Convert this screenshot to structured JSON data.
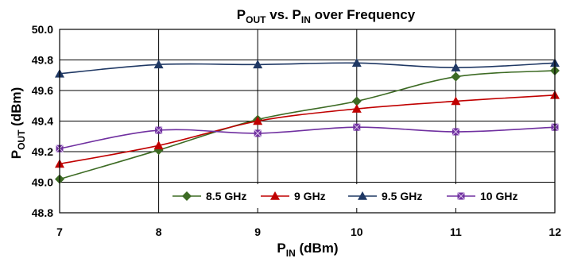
{
  "chart_data": {
    "type": "line",
    "title": {
      "main": "P",
      "main_sub": "OUT",
      "mid": " vs. P",
      "mid_sub": "IN",
      "tail": " over Frequency"
    },
    "xlabel": {
      "main": "P",
      "sub": "IN",
      "tail": " (dBm)"
    },
    "ylabel": {
      "main": "P",
      "sub": "OUT",
      "tail": " (dBm)"
    },
    "x_ticks": [
      "7",
      "8",
      "9",
      "10",
      "11",
      "12"
    ],
    "y_ticks": [
      "48.8",
      "49.0",
      "49.2",
      "49.4",
      "49.6",
      "49.8",
      "50.0"
    ],
    "xlim": [
      7,
      12
    ],
    "ylim": [
      48.8,
      50.0
    ],
    "grid": true,
    "legend_position": "bottom-center inside plot",
    "x": [
      7,
      8,
      9,
      10,
      11,
      12
    ],
    "series": [
      {
        "name": "8.5 GHz",
        "color": "#3d6b24",
        "marker": "diamond",
        "values": [
          49.02,
          49.21,
          49.41,
          49.53,
          49.69,
          49.73
        ]
      },
      {
        "name": "9 GHz",
        "color": "#c00000",
        "marker": "triangle",
        "values": [
          49.12,
          49.24,
          49.4,
          49.48,
          49.53,
          49.57
        ]
      },
      {
        "name": "9.5 GHz",
        "color": "#1f3864",
        "marker": "triangle",
        "values": [
          49.71,
          49.77,
          49.77,
          49.78,
          49.75,
          49.78
        ]
      },
      {
        "name": "10 GHz",
        "color": "#7030a0",
        "marker": "square-x",
        "values": [
          49.22,
          49.34,
          49.32,
          49.36,
          49.33,
          49.36
        ]
      }
    ]
  }
}
